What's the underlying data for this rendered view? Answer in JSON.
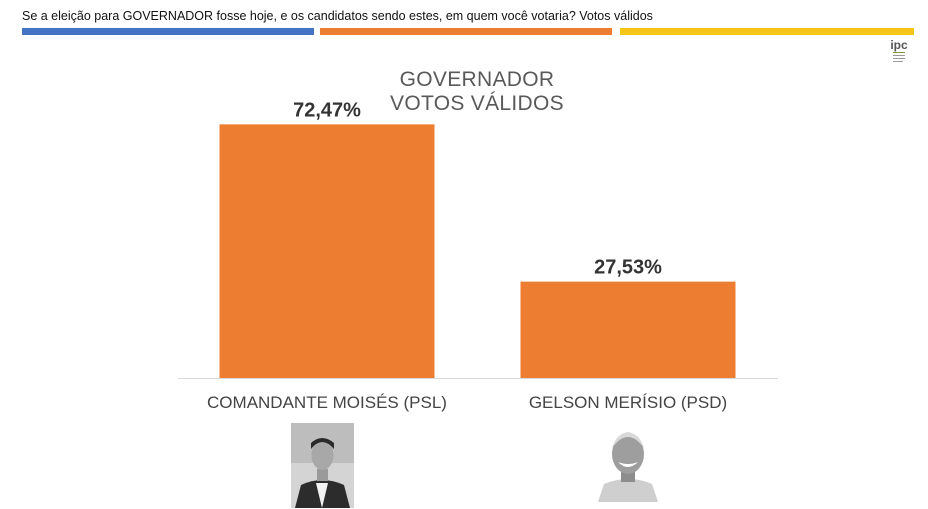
{
  "header": {
    "question": "Se a eleição para GOVERNADOR fosse hoje, e os candidatos sendo estes, em quem você votaria? Votos válidos",
    "stripe_colors": [
      "#4472c4",
      "#ed7d31",
      "#f5c518"
    ]
  },
  "logo": {
    "text": "IPC",
    "icon": "ipc-logo-icon"
  },
  "chart_data": {
    "type": "bar",
    "title": "GOVERNADOR",
    "subtitle": "VOTOS VÁLIDOS",
    "categories": [
      "COMANDANTE MOISÉS (PSL)",
      "GELSON MERÍSIO (PSD)"
    ],
    "values": [
      72.47,
      27.53
    ],
    "value_labels": [
      "72,47%",
      "27,53%"
    ],
    "unit": "%",
    "bar_color": "#ed7d31",
    "ylim": [
      0,
      80
    ],
    "grid": false,
    "legend": "none"
  },
  "photos": [
    {
      "icon": "candidate-photo-icon"
    },
    {
      "icon": "candidate-photo-icon"
    }
  ]
}
